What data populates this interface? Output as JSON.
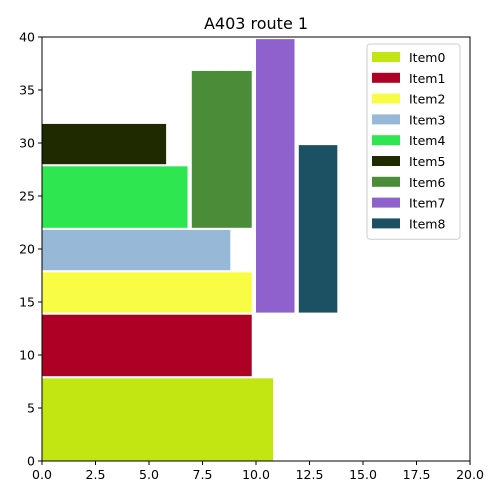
{
  "chart_data": {
    "type": "bar",
    "title": "A403 route 1",
    "xlabel": "",
    "ylabel": "",
    "xlim": [
      0,
      20
    ],
    "ylim": [
      0,
      40
    ],
    "xticks": [
      "0.0",
      "2.5",
      "5.0",
      "7.5",
      "10.0",
      "12.5",
      "15.0",
      "17.5",
      "20.0"
    ],
    "yticks": [
      "0",
      "5",
      "10",
      "15",
      "20",
      "25",
      "30",
      "35",
      "40"
    ],
    "grid": false,
    "legend_position": "top-right",
    "series": [
      {
        "name": "Item0",
        "x0": 0,
        "x1": 10.8,
        "y0": 0,
        "y1": 7.8,
        "color": "#c2e612"
      },
      {
        "name": "Item1",
        "x0": 0,
        "x1": 9.8,
        "y0": 8,
        "y1": 13.8,
        "color": "#ae0025"
      },
      {
        "name": "Item2",
        "x0": 0,
        "x1": 9.8,
        "y0": 14,
        "y1": 17.8,
        "color": "#f9fc45"
      },
      {
        "name": "Item3",
        "x0": 0,
        "x1": 8.8,
        "y0": 18,
        "y1": 21.8,
        "color": "#97b8d7"
      },
      {
        "name": "Item4",
        "x0": 0,
        "x1": 6.8,
        "y0": 22,
        "y1": 27.8,
        "color": "#2ee650"
      },
      {
        "name": "Item5",
        "x0": 0,
        "x1": 5.8,
        "y0": 28,
        "y1": 31.8,
        "color": "#1f2a00"
      },
      {
        "name": "Item6",
        "x0": 7,
        "x1": 9.8,
        "y0": 22,
        "y1": 36.8,
        "color": "#4a8c38"
      },
      {
        "name": "Item7",
        "x0": 10,
        "x1": 11.8,
        "y0": 14,
        "y1": 39.8,
        "color": "#8f61cc"
      },
      {
        "name": "Item8",
        "x0": 12,
        "x1": 13.8,
        "y0": 14,
        "y1": 29.8,
        "color": "#1b5163"
      }
    ]
  }
}
